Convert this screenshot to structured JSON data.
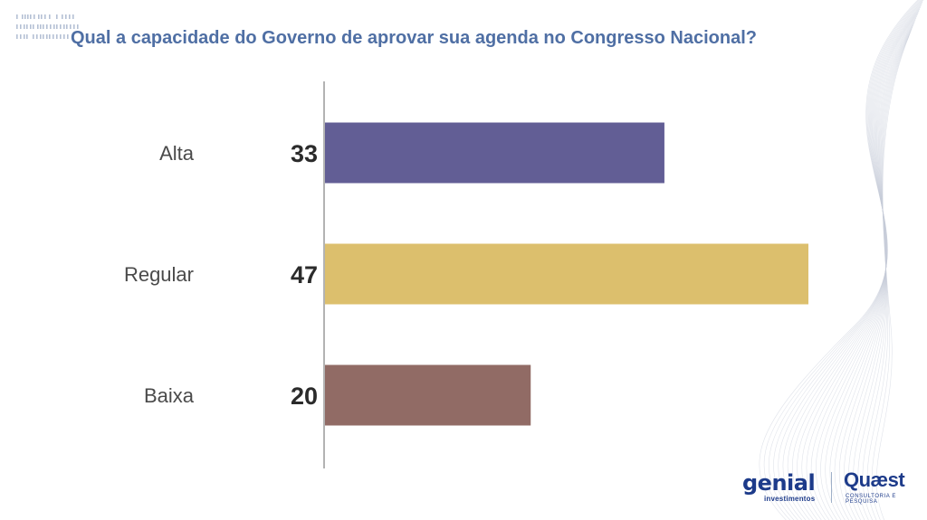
{
  "chart_data": {
    "type": "bar",
    "orientation": "horizontal",
    "title": "Qual a capacidade do Governo de aprovar sua agenda no Congresso Nacional?",
    "categories": [
      "Alta",
      "Regular",
      "Baixa"
    ],
    "values": [
      33,
      47,
      20
    ],
    "colors": [
      "#625e95",
      "#dcbf6d",
      "#916b65"
    ],
    "xlim": [
      0,
      47
    ],
    "grid": false,
    "legend": "none"
  },
  "logos": {
    "genial": "genial",
    "genial_sub": "investimentos",
    "quaest": "Quæst",
    "quaest_sub": "CONSULTORIA E PESQUISA"
  },
  "colors": {
    "title": "#4f6fa4",
    "brand": "#1d3b8a"
  }
}
